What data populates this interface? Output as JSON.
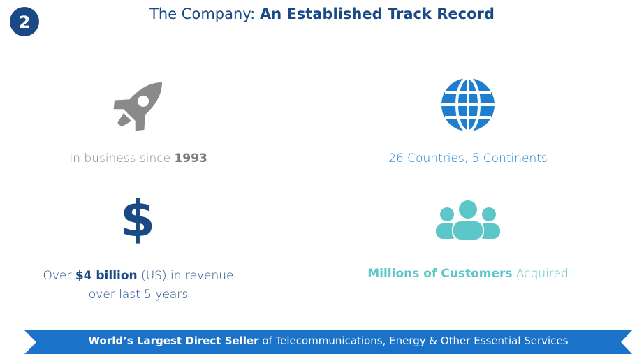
{
  "badge": "2",
  "header": {
    "title_lead": "The Company: ",
    "title_emphasis": "An Established Track Record"
  },
  "items": [
    {
      "lead": "In business since ",
      "emphasis": "1993"
    },
    {
      "text": "26 Countries, 5 Continents"
    },
    {
      "icon": "$",
      "lead": "Over ",
      "emphasis": "$4 billion",
      "tail": " (US) in revenue",
      "line2": "over last 5 years"
    },
    {
      "emphasis": "Millions of Customers",
      "tail": " Acquired"
    }
  ],
  "banner": {
    "emphasis": "World’s Largest Direct Seller",
    "tail": " of Telecommunications, Energy & Other Essential Services"
  }
}
